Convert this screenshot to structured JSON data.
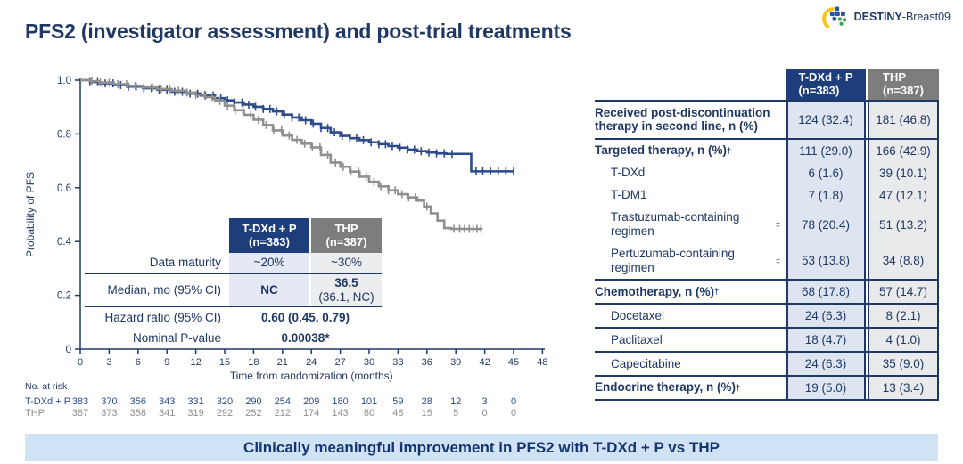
{
  "title": "PFS2 (investigator assessment) and post-trial treatments",
  "logo": {
    "bold": "DESTINY",
    "rest": "-Breast09"
  },
  "banner": {
    "text": "Clinically meaningful improvement in PFS2 with T-DXd + P vs THP"
  },
  "colors": {
    "navy_text": "#1f3864",
    "header_navy": "#1e3d7b",
    "header_gray": "#7d7d7d",
    "curve_blue": "#2c4a8c",
    "curve_gray": "#8f8f8f",
    "col_blue_bg": "#dee5f1",
    "col_gray_bg": "#e8eaec",
    "banner_bg": "#cfe2f6",
    "logo_yellow": "#f5c51c",
    "logo_blue": "#2a56a5",
    "logo_green": "#3aa655"
  },
  "chart_data": {
    "type": "line",
    "subtype": "kaplan-meier-step",
    "title": "",
    "xlabel": "Time from randomization (months)",
    "ylabel": "Probability of PFS",
    "xlim": [
      0,
      48
    ],
    "ylim": [
      0,
      1.0
    ],
    "xticks": [
      0,
      3,
      6,
      9,
      12,
      15,
      18,
      21,
      24,
      27,
      30,
      33,
      36,
      39,
      42,
      45,
      48
    ],
    "ytick_labels": [
      "1.0",
      "0.8",
      "0.6",
      "0.4",
      "0.2",
      "0"
    ],
    "yticks": [
      1.0,
      0.8,
      0.6,
      0.4,
      0.2,
      0
    ],
    "grid": false,
    "legend_position": "in-plot table",
    "series": [
      {
        "name": "T-DXd + P",
        "color": "#2c4a8c",
        "points": [
          [
            0,
            1.0
          ],
          [
            1,
            0.993
          ],
          [
            2,
            0.988
          ],
          [
            3.5,
            0.982
          ],
          [
            5,
            0.976
          ],
          [
            6.5,
            0.97
          ],
          [
            8,
            0.964
          ],
          [
            9.5,
            0.957
          ],
          [
            11,
            0.95
          ],
          [
            12.5,
            0.943
          ],
          [
            14,
            0.933
          ],
          [
            15,
            0.925
          ],
          [
            16,
            0.917
          ],
          [
            17,
            0.909
          ],
          [
            18,
            0.901
          ],
          [
            19,
            0.893
          ],
          [
            20,
            0.884
          ],
          [
            21,
            0.872
          ],
          [
            22,
            0.861
          ],
          [
            23,
            0.851
          ],
          [
            24,
            0.838
          ],
          [
            25,
            0.822
          ],
          [
            26,
            0.806
          ],
          [
            27,
            0.793
          ],
          [
            28,
            0.784
          ],
          [
            29,
            0.777
          ],
          [
            30,
            0.769
          ],
          [
            31,
            0.762
          ],
          [
            32,
            0.755
          ],
          [
            33,
            0.749
          ],
          [
            34,
            0.742
          ],
          [
            35,
            0.736
          ],
          [
            36,
            0.731
          ],
          [
            37,
            0.728
          ],
          [
            38,
            0.726
          ],
          [
            40.6,
            0.726
          ],
          [
            40.6,
            0.661
          ],
          [
            45,
            0.661
          ]
        ],
        "censor_months": [
          1,
          1.8,
          2.6,
          3.4,
          4.2,
          5,
          5.8,
          6.6,
          7.4,
          8.2,
          9,
          9.8,
          10.6,
          11.4,
          12.2,
          13,
          13.8,
          14.6,
          15.3,
          16,
          16.8,
          17.5,
          18.2,
          19,
          19.7,
          20.4,
          21.2,
          22,
          22.7,
          23.4,
          24.2,
          25,
          25.7,
          26.4,
          27.2,
          28,
          28.7,
          29.4,
          30.2,
          31,
          31.7,
          32.4,
          33.2,
          34,
          34.7,
          35.4,
          36.2,
          37,
          37.8,
          38.6,
          41.1,
          41.8,
          42.6,
          43.4,
          44.2,
          45
        ]
      },
      {
        "name": "THP",
        "color": "#8f8f8f",
        "points": [
          [
            0,
            1.0
          ],
          [
            1,
            0.996
          ],
          [
            2,
            0.991
          ],
          [
            3.5,
            0.985
          ],
          [
            5,
            0.979
          ],
          [
            6.5,
            0.973
          ],
          [
            8,
            0.967
          ],
          [
            9.5,
            0.961
          ],
          [
            11,
            0.954
          ],
          [
            12,
            0.946
          ],
          [
            13,
            0.937
          ],
          [
            14,
            0.923
          ],
          [
            15,
            0.905
          ],
          [
            16,
            0.888
          ],
          [
            17,
            0.871
          ],
          [
            18,
            0.853
          ],
          [
            19,
            0.833
          ],
          [
            20,
            0.813
          ],
          [
            21,
            0.794
          ],
          [
            22,
            0.778
          ],
          [
            23,
            0.764
          ],
          [
            24,
            0.75
          ],
          [
            25,
            0.722
          ],
          [
            26,
            0.694
          ],
          [
            27,
            0.678
          ],
          [
            28,
            0.66
          ],
          [
            29,
            0.641
          ],
          [
            30,
            0.622
          ],
          [
            31,
            0.605
          ],
          [
            32,
            0.59
          ],
          [
            33,
            0.576
          ],
          [
            34,
            0.564
          ],
          [
            35,
            0.552
          ],
          [
            35.7,
            0.53
          ],
          [
            36.4,
            0.505
          ],
          [
            37.1,
            0.478
          ],
          [
            37.8,
            0.45
          ],
          [
            38.5,
            0.447
          ],
          [
            41.8,
            0.447
          ]
        ],
        "censor_months": [
          1.2,
          2.1,
          3,
          3.9,
          4.8,
          5.7,
          6.6,
          7.5,
          8.4,
          9.3,
          10.2,
          11.1,
          12,
          12.9,
          13.7,
          14.5,
          15.3,
          16.1,
          16.9,
          17.7,
          18.5,
          19.3,
          20.1,
          20.9,
          21.7,
          22.5,
          23.3,
          24.1,
          24.9,
          25.7,
          26.5,
          27.3,
          28.1,
          28.9,
          29.7,
          30.5,
          31.2,
          32,
          32.7,
          33.4,
          34.1,
          34.8,
          36,
          38.8,
          39.4,
          39.9,
          40.4,
          40.8,
          41.2,
          41.6
        ]
      }
    ],
    "at_risk": {
      "label": "No. at risk",
      "months": [
        0,
        3,
        6,
        9,
        12,
        15,
        18,
        21,
        24,
        27,
        30,
        33,
        36,
        39,
        42,
        45
      ],
      "rows": [
        {
          "name": "T-DXd + P",
          "color": "#2c4a8c",
          "values": [
            "383",
            "370",
            "356",
            "343",
            "331",
            "320",
            "290",
            "254",
            "209",
            "180",
            "101",
            "59",
            "28",
            "12",
            "3",
            "0"
          ]
        },
        {
          "name": "THP",
          "color": "#8f8f8f",
          "values": [
            "387",
            "373",
            "358",
            "341",
            "319",
            "292",
            "252",
            "212",
            "174",
            "143",
            "80",
            "48",
            "15",
            "5",
            "0",
            "0"
          ]
        }
      ]
    }
  },
  "stats_table": {
    "col_headers": [
      {
        "line1": "T-DXd + P",
        "line2": "(n=383)"
      },
      {
        "line1": "THP",
        "line2": "(n=387)"
      }
    ],
    "rows": {
      "maturity": {
        "label": "Data maturity",
        "v1": "~20%",
        "v2": "~30%"
      },
      "median": {
        "label": "Median, mo (95% CI)",
        "v1": "NC",
        "v2_main": "36.5",
        "v2_sub": "(36.1, NC)"
      },
      "hazard": {
        "label": "Hazard ratio (95% CI)",
        "value": "0.60 (0.45, 0.79)"
      },
      "pvalue": {
        "label": "Nominal P-value",
        "value": "0.00038*"
      }
    }
  },
  "right_table": {
    "col_headers": [
      {
        "line1": "T-DXd + P",
        "line2": "(n=383)"
      },
      {
        "line1": "THP",
        "line2": "(n=387)"
      }
    ],
    "rows": [
      {
        "label": "Received post-discontinuation therapy in second line, n (%)",
        "sup": "†",
        "bold": true,
        "indent": false,
        "v1": "124 (32.4)",
        "v2": "181 (46.8)",
        "line_below": true
      },
      {
        "label": "Targeted therapy, n (%)",
        "sup": "†",
        "bold": true,
        "indent": false,
        "v1": "111 (29.0)",
        "v2": "166 (42.9)",
        "line_below": false
      },
      {
        "label": "T-DXd",
        "sup": "",
        "bold": false,
        "indent": true,
        "v1": "6 (1.6)",
        "v2": "39 (10.1)",
        "line_below": false
      },
      {
        "label": "T-DM1",
        "sup": "",
        "bold": false,
        "indent": true,
        "v1": "7 (1.8)",
        "v2": "47 (12.1)",
        "line_below": false
      },
      {
        "label": "Trastuzumab-containing regimen",
        "sup": "‡",
        "bold": false,
        "indent": true,
        "v1": "78 (20.4)",
        "v2": "51 (13.2)",
        "line_below": false
      },
      {
        "label": "Pertuzumab-containing regimen",
        "sup": "‡",
        "bold": false,
        "indent": true,
        "v1": "53 (13.8)",
        "v2": "34 (8.8)",
        "line_below": true
      },
      {
        "label": "Chemotherapy, n (%)",
        "sup": "†",
        "bold": true,
        "indent": false,
        "v1": "68 (17.8)",
        "v2": "57 (14.7)",
        "line_below": true
      },
      {
        "label": "Docetaxel",
        "sup": "",
        "bold": false,
        "indent": true,
        "v1": "24 (6.3)",
        "v2": "8 (2.1)",
        "line_below": true
      },
      {
        "label": "Paclitaxel",
        "sup": "",
        "bold": false,
        "indent": true,
        "v1": "18 (4.7)",
        "v2": "4 (1.0)",
        "line_below": true
      },
      {
        "label": "Capecitabine",
        "sup": "",
        "bold": false,
        "indent": true,
        "v1": "24 (6.3)",
        "v2": "35 (9.0)",
        "line_below": true
      },
      {
        "label": "Endocrine therapy, n (%)",
        "sup": "†",
        "bold": true,
        "indent": false,
        "v1": "19 (5.0)",
        "v2": "13 (3.4)",
        "line_below": true
      }
    ]
  }
}
